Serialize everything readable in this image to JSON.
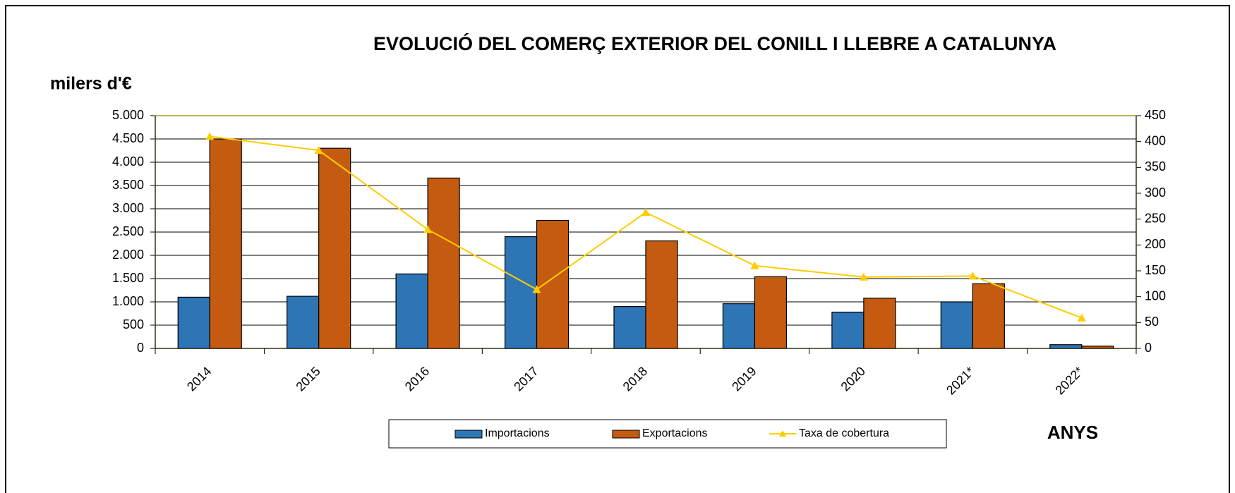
{
  "chart_data": {
    "type": "bar",
    "title": "EVOLUCIÓ DEL COMERÇ EXTERIOR DEL CONILL I LLEBRE A CATALUNYA",
    "y_label": "milers d'€",
    "x_label": "ANYS",
    "categories": [
      "2014",
      "2015",
      "2016",
      "2017",
      "2018",
      "2019",
      "2020",
      "2021*",
      "2022*"
    ],
    "series": [
      {
        "name": "Importacions",
        "color": "#2e75b6",
        "values": [
          1100,
          1120,
          1600,
          2400,
          900,
          960,
          780,
          1000,
          80
        ]
      },
      {
        "name": "Exportacions",
        "color": "#c55a11",
        "values": [
          4500,
          4300,
          3660,
          2750,
          2310,
          1540,
          1080,
          1390,
          50
        ]
      },
      {
        "name": "Taxa de cobertura",
        "color": "#ffcc00",
        "type": "line",
        "axis": "y2",
        "values": [
          410,
          383,
          230,
          114,
          263,
          160,
          138,
          140,
          59
        ]
      }
    ],
    "ylim": [
      0,
      5000
    ],
    "yticks": [
      0,
      500,
      {
        "value": 1000,
        "label": "1.000"
      },
      {
        "value": 1500,
        "label": "1.500"
      },
      {
        "value": 2000,
        "label": "2.000"
      },
      {
        "value": 2500,
        "label": "2.500"
      },
      {
        "value": 3000,
        "label": "3.000"
      },
      {
        "value": 3500,
        "label": "3.500"
      },
      {
        "value": 4000,
        "label": "4.000"
      },
      {
        "value": 4500,
        "label": "4.500"
      },
      {
        "value": 5000,
        "label": "5.000"
      }
    ],
    "y2lim": [
      0,
      450
    ],
    "y2ticks": [
      0,
      50,
      100,
      150,
      200,
      250,
      300,
      350,
      400,
      450
    ],
    "grid": true
  }
}
